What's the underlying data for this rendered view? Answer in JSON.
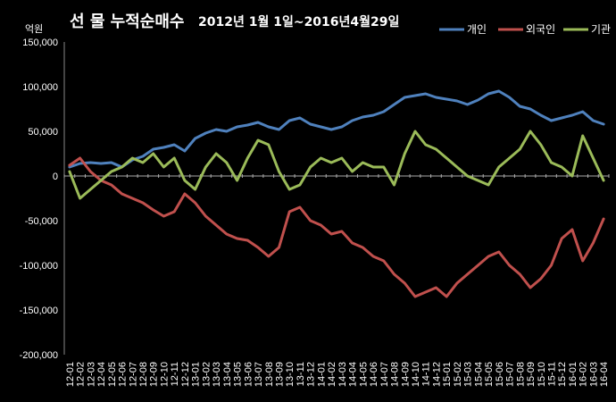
{
  "chart_data": {
    "type": "line",
    "title_main": "선 물 누적순매수",
    "title_sub": "2012년 1월 1일~2016년4월29일",
    "unit_label": "억원",
    "ylim": [
      -200000,
      150000
    ],
    "y_ticks": [
      "150,000",
      "100,000",
      "50,000",
      "0",
      "-50,000",
      "-100,000",
      "-150,000",
      "-200,000"
    ],
    "y_tick_values": [
      150000,
      100000,
      50000,
      0,
      -50000,
      -100000,
      -150000,
      -200000
    ],
    "categories": [
      "12-01",
      "12-02",
      "12-03",
      "12-04",
      "12-05",
      "12-06",
      "12-07",
      "12-08",
      "12-09",
      "12-10",
      "12-11",
      "12-12",
      "13-01",
      "13-02",
      "13-03",
      "13-04",
      "13-05",
      "13-06",
      "13-07",
      "13-08",
      "13-09",
      "13-10",
      "13-11",
      "13-12",
      "14-01",
      "14-02",
      "14-03",
      "14-04",
      "14-05",
      "14-06",
      "14-07",
      "14-08",
      "14-09",
      "14-10",
      "14-11",
      "14-12",
      "15-01",
      "15-02",
      "15-03",
      "15-04",
      "15-05",
      "15-06",
      "15-07",
      "15-08",
      "15-09",
      "15-10",
      "15-11",
      "15-12",
      "16-01",
      "16-02",
      "16-03",
      "16-04"
    ],
    "legend_position": "top-right",
    "grid": false,
    "series": [
      {
        "name": "개인",
        "color": "#4F81BD",
        "values": [
          10000,
          14000,
          15000,
          14000,
          15000,
          10000,
          18000,
          22000,
          30000,
          32000,
          35000,
          28000,
          42000,
          48000,
          52000,
          50000,
          55000,
          57000,
          60000,
          55000,
          52000,
          62000,
          65000,
          58000,
          55000,
          52000,
          55000,
          62000,
          66000,
          68000,
          72000,
          80000,
          88000,
          90000,
          92000,
          88000,
          86000,
          84000,
          80000,
          85000,
          92000,
          95000,
          88000,
          78000,
          75000,
          68000,
          62000,
          65000,
          68000,
          72000,
          62000,
          58000
        ]
      },
      {
        "name": "외국인",
        "color": "#C0504D",
        "values": [
          12000,
          20000,
          5000,
          -5000,
          -10000,
          -20000,
          -25000,
          -30000,
          -38000,
          -45000,
          -40000,
          -20000,
          -30000,
          -45000,
          -55000,
          -65000,
          -70000,
          -72000,
          -80000,
          -90000,
          -80000,
          -40000,
          -35000,
          -50000,
          -55000,
          -65000,
          -62000,
          -75000,
          -80000,
          -90000,
          -95000,
          -110000,
          -120000,
          -135000,
          -130000,
          -125000,
          -135000,
          -120000,
          -110000,
          -100000,
          -90000,
          -85000,
          -100000,
          -110000,
          -125000,
          -115000,
          -100000,
          -70000,
          -60000,
          -95000,
          -75000,
          -48000
        ]
      },
      {
        "name": "기관",
        "color": "#9BBB59",
        "values": [
          5000,
          -25000,
          -15000,
          -5000,
          5000,
          10000,
          20000,
          15000,
          25000,
          10000,
          20000,
          -5000,
          -15000,
          10000,
          25000,
          15000,
          -5000,
          20000,
          40000,
          35000,
          5000,
          -15000,
          -10000,
          10000,
          20000,
          15000,
          20000,
          5000,
          15000,
          10000,
          10000,
          -10000,
          25000,
          50000,
          35000,
          30000,
          20000,
          10000,
          0,
          -5000,
          -10000,
          10000,
          20000,
          30000,
          50000,
          35000,
          15000,
          10000,
          0,
          45000,
          20000,
          -5000
        ]
      }
    ]
  }
}
